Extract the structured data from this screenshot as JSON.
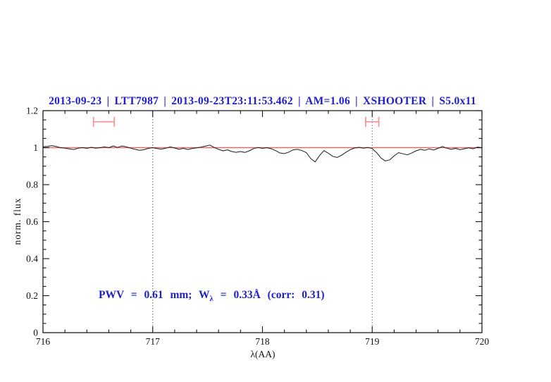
{
  "colors": {
    "text_blue": "#1e1ecd",
    "spectrum_black": "#1a1a1a",
    "model_red": "#e06c6c",
    "marker_red": "#f09898",
    "guide_gray": "#666666",
    "axis_black": "#111111"
  },
  "annotation": {
    "prefix": "PWV = 0.61 mm; W",
    "sub": "λ",
    "suffix": " = 0.33Å (corr: 0.31)"
  },
  "chart_data": {
    "type": "line",
    "title": "2013-09-23 | LTT7987 | 2013-09-23T23:11:53.462 | AM=1.06 | XSHOOTER | S5.0x11",
    "xlabel": "λ(AA)",
    "ylabel": "norm. flux",
    "xlim": [
      716,
      720
    ],
    "ylim": [
      0,
      1.2
    ],
    "grid": "off",
    "legend": "none",
    "x_major_ticks": [
      716,
      717,
      718,
      719,
      720
    ],
    "x_tick_labels": [
      "716",
      "717",
      "718",
      "719",
      "720"
    ],
    "x_minor_step": 0.2,
    "y_major_ticks": [
      0,
      0.2,
      0.4,
      0.6,
      0.8,
      1.0,
      1.2
    ],
    "y_tick_labels": [
      "0",
      "0.2",
      "0.4",
      "0.6",
      "0.8",
      "1",
      "1.2"
    ],
    "y_minor_step": 0.05,
    "dotted_guides_x": [
      717,
      719
    ],
    "range_markers": [
      {
        "x_min": 716.46,
        "x_max": 716.65,
        "y": 1.14,
        "cap_half_height": 0.027
      },
      {
        "x_min": 718.94,
        "x_max": 719.06,
        "y": 1.14,
        "cap_half_height": 0.027
      }
    ],
    "series": [
      {
        "name": "observed-spectrum",
        "x_start": 716.0,
        "x_step": 0.04,
        "y": [
          1.005,
          1.007,
          1.011,
          1.006,
          1.0,
          0.997,
          0.993,
          0.99,
          0.997,
          1.0,
          0.996,
          1.002,
          0.997,
          1.0,
          1.004,
          1.0,
          1.009,
          1.001,
          1.009,
          1.004,
          0.997,
          0.991,
          0.986,
          0.989,
          0.996,
          1.0,
          0.995,
          0.992,
          0.997,
          1.004,
          0.998,
          0.991,
          0.996,
          0.99,
          0.995,
          0.999,
          1.003,
          1.008,
          1.014,
          1.001,
          0.991,
          0.983,
          0.988,
          0.979,
          0.975,
          0.979,
          0.974,
          0.983,
          0.995,
          1.001,
          0.996,
          1.0,
          0.994,
          0.984,
          0.971,
          0.968,
          0.976,
          0.988,
          0.991,
          0.984,
          0.973,
          0.941,
          0.923,
          0.957,
          0.984,
          0.97,
          0.953,
          0.947,
          0.959,
          0.975,
          0.989,
          0.998,
          1.002,
          0.997,
          1.001,
          0.995,
          0.973,
          0.944,
          0.928,
          0.934,
          0.956,
          0.973,
          0.967,
          0.961,
          0.971,
          0.983,
          0.991,
          0.986,
          0.993,
          0.987,
          0.996,
          1.006,
          0.997,
          0.991,
          0.996,
          0.989,
          0.994,
          0.999,
          0.994,
          1.003,
          1.0
        ]
      },
      {
        "name": "model-continuum",
        "y_const": 1.0
      }
    ]
  }
}
